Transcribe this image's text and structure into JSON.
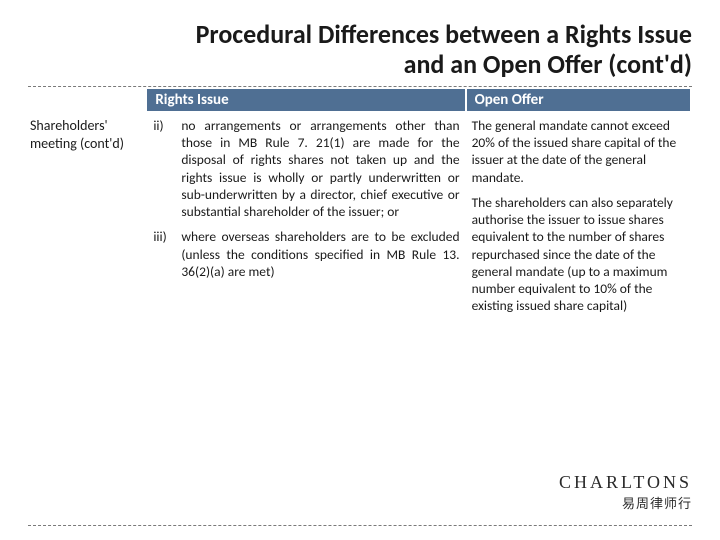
{
  "title_line1": "Procedural Differences between a Rights Issue",
  "title_line2": "and an Open Offer (cont'd)",
  "colors": {
    "header_bg": "#4f6f93",
    "header_text": "#ffffff",
    "body_text": "#1a1a1a",
    "divider": "#7a7a7a",
    "background": "#ffffff"
  },
  "typography": {
    "title_fontsize": 26,
    "title_weight": 700,
    "header_fontsize": 15,
    "body_fontsize": 13.5,
    "brand_fontsize": 18
  },
  "table": {
    "type": "table",
    "columns": [
      "",
      "Rights Issue",
      "Open Offer"
    ],
    "col_widths_pct": [
      18,
      48,
      34
    ],
    "rows": [
      {
        "label": "Shareholders' meeting (cont'd)",
        "rights_issue_items": [
          {
            "marker": "ii)",
            "text": "no arrangements or arrangements other than those in MB Rule 7. 21(1) are made for the disposal of rights shares not taken up and the rights issue is wholly or partly underwritten or sub-underwritten by a director, chief executive or substantial shareholder of the issuer; or"
          },
          {
            "marker": "iii)",
            "text": "where overseas shareholders are to be excluded (unless the conditions specified in MB Rule 13. 36(2)(a) are met)"
          }
        ],
        "open_offer_paras": [
          "The general mandate cannot exceed 20% of the issued share capital of the issuer at the date of the general mandate.",
          "The shareholders can also separately authorise the issuer to issue shares equivalent to the number of shares repurchased since the date of the general mandate (up to a maximum number equivalent to 10% of the existing issued share capital)"
        ]
      }
    ]
  },
  "brand": {
    "en": "CHARLTONS",
    "cn": "易周律师行"
  }
}
